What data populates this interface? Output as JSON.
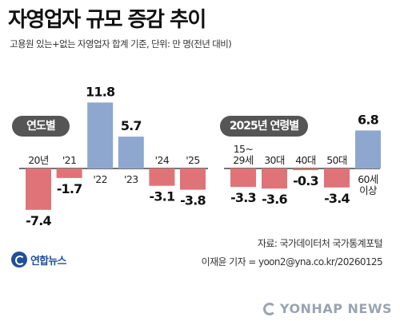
{
  "title": "자영업자 규모 증감 추이",
  "subtitle": "고용원 있는+없는 자영업자 합계 기준, 단위: 만 명(전년 대비)",
  "colors": {
    "positive": "#8ea7cf",
    "negative": "#e07378",
    "pill": "#555555",
    "brand": "#1f4f9c"
  },
  "chart_data": [
    {
      "type": "bar",
      "legend_label": "연도별",
      "categories": [
        "20년",
        "'21",
        "'22",
        "'23",
        "'24",
        "'25"
      ],
      "values": [
        -7.4,
        -1.7,
        11.8,
        5.7,
        -3.1,
        -3.8
      ],
      "value_labels": [
        "-7.4",
        "-1.7",
        "11.8",
        "5.7",
        "-3.1",
        "-3.8"
      ]
    },
    {
      "type": "bar",
      "legend_label": "2025년 연령별",
      "categories": [
        "15~\n29세",
        "30대",
        "40대",
        "50대",
        "60세\n이상"
      ],
      "values": [
        -3.3,
        -3.6,
        -0.3,
        -3.4,
        6.8
      ],
      "value_labels": [
        "-3.3",
        "-3.6",
        "-0.3",
        "-3.4",
        "6.8"
      ]
    }
  ],
  "source": "자료: 국가데이터처 국가통계포털",
  "credit": "이재윤 기자 = yoon2@yna.co.kr/20260125",
  "logo_text": "연합뉴스",
  "watermark": "YONHAP NEWS"
}
